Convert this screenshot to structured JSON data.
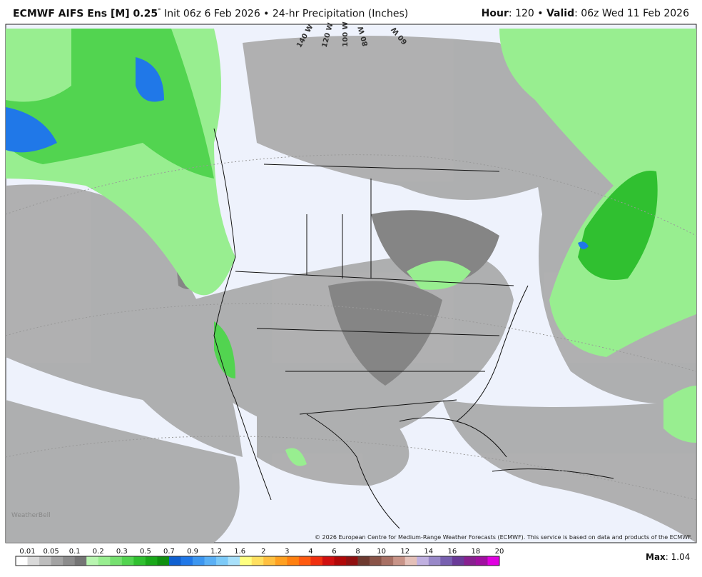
{
  "header": {
    "model": "ECMWF AIFS Ens [M] 0.25",
    "degree": "°",
    "info": "Init 06z 6 Feb 2026 • 24-hr Precipitation (Inches)",
    "hour_label": "Hour",
    "hour": "120",
    "valid_label": "Valid",
    "valid": "06z Wed 11 Feb 2026"
  },
  "map": {
    "longitudes": [
      "140 W",
      "120 W",
      "100 W",
      "80 W",
      "60 W"
    ],
    "logo": "WeatherBell",
    "copyright": "© 2026 European Centre for Medium-Range Weather Forecasts (ECMWF). This service is based on data and products of the ECMWF."
  },
  "legend": {
    "labels": [
      "0.01",
      "0.05",
      "0.1",
      "0.2",
      "0.3",
      "0.5",
      "0.7",
      "0.9",
      "1.2",
      "1.6",
      "2",
      "3",
      "4",
      "6",
      "8",
      "10",
      "12",
      "14",
      "16",
      "18",
      "20"
    ],
    "colors": [
      "#ffffff",
      "#d9d9d9",
      "#bdbdbd",
      "#a3a3a3",
      "#8c8c8c",
      "#757575",
      "#b8f5b0",
      "#98ee90",
      "#76e070",
      "#52d450",
      "#30c030",
      "#1aa81a",
      "#109010",
      "#1060d0",
      "#2078e8",
      "#3c96f0",
      "#5ab0f5",
      "#7ccaf8",
      "#a8e0fa",
      "#ffff80",
      "#ffe060",
      "#ffc040",
      "#ffa020",
      "#ff8010",
      "#ff5a10",
      "#f03010",
      "#d01010",
      "#b00808",
      "#901010",
      "#6e3a30",
      "#8a5448",
      "#a87064",
      "#c89488",
      "#e4c0b8",
      "#c0b0e0",
      "#9888c8",
      "#7860b0",
      "#6a3a98",
      "#882090",
      "#a010a0",
      "#e000e0"
    ],
    "max_label": "Max",
    "max": "1.04"
  }
}
